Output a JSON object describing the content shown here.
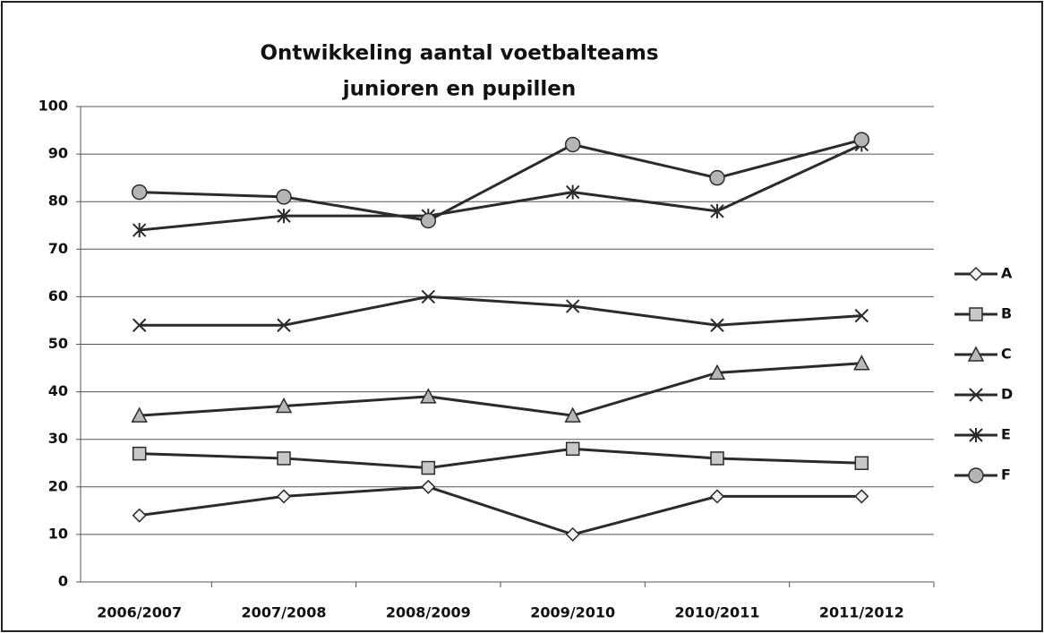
{
  "chart_data": {
    "type": "line",
    "title": "Ontwikkeling aantal voetbalteams",
    "subtitle": "junioren en pupillen",
    "categories": [
      "2006/2007",
      "2007/2008",
      "2008/2009",
      "2009/2010",
      "2010/2011",
      "2011/2012"
    ],
    "series": [
      {
        "name": "A",
        "color": "#2b2b2b",
        "marker": "diamond",
        "values": [
          14,
          18,
          20,
          10,
          18,
          18
        ]
      },
      {
        "name": "B",
        "color": "#2b2b2b",
        "marker": "square",
        "values": [
          27,
          26,
          24,
          28,
          26,
          25
        ]
      },
      {
        "name": "C",
        "color": "#2b2b2b",
        "marker": "triangle",
        "values": [
          35,
          37,
          39,
          35,
          44,
          46
        ]
      },
      {
        "name": "D",
        "color": "#2b2b2b",
        "marker": "x",
        "values": [
          54,
          54,
          60,
          58,
          54,
          56
        ]
      },
      {
        "name": "E",
        "color": "#2b2b2b",
        "marker": "asterisk",
        "values": [
          74,
          77,
          77,
          82,
          78,
          92
        ]
      },
      {
        "name": "F",
        "color": "#2b2b2b",
        "marker": "circle",
        "values": [
          82,
          81,
          76,
          92,
          85,
          93
        ]
      }
    ],
    "ylim": [
      0,
      100
    ],
    "yticks": [
      0,
      10,
      20,
      30,
      40,
      50,
      60,
      70,
      80,
      90,
      100
    ],
    "grid": true,
    "legend": "right"
  }
}
